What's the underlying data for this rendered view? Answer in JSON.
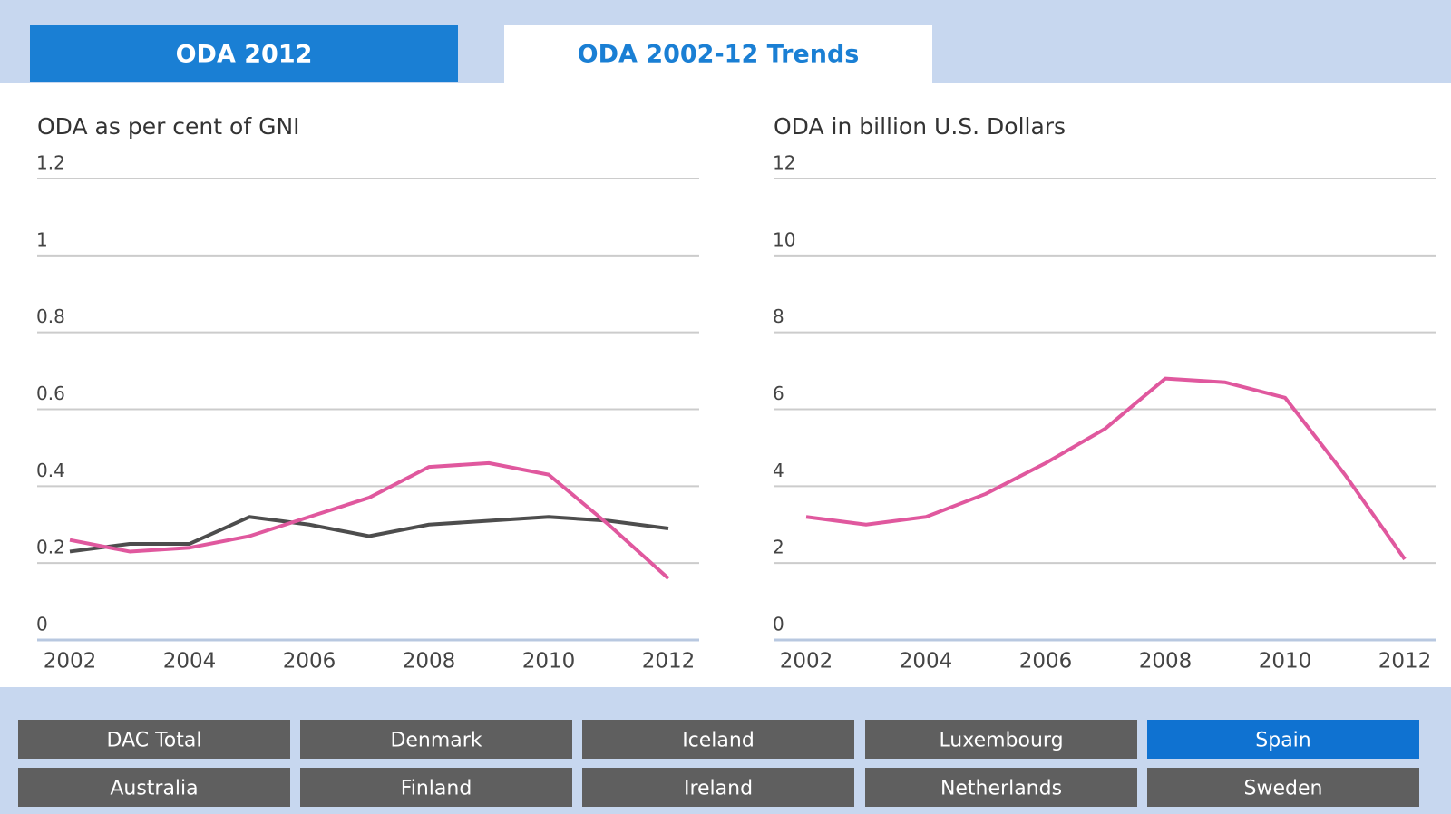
{
  "tabs": [
    "ODA 2012",
    "ODA 2002-12 Trends"
  ],
  "active_tab": 1,
  "chart_data": [
    {
      "type": "line",
      "title": "ODA as per cent of GNI",
      "x": [
        2002,
        2003,
        2004,
        2005,
        2006,
        2007,
        2008,
        2009,
        2010,
        2011,
        2012
      ],
      "series": [
        {
          "color": "#4d4d4d",
          "values": [
            0.23,
            0.25,
            0.25,
            0.32,
            0.3,
            0.27,
            0.3,
            0.31,
            0.32,
            0.31,
            0.29
          ]
        },
        {
          "color": "#e0589e",
          "values": [
            0.26,
            0.23,
            0.24,
            0.27,
            0.32,
            0.37,
            0.45,
            0.46,
            0.43,
            0.3,
            0.16
          ]
        }
      ],
      "xlim": [
        2002,
        2012
      ],
      "xticks": [
        2002,
        2004,
        2006,
        2008,
        2010,
        2012
      ],
      "ylim": [
        0,
        1.2
      ],
      "yticks": [
        0,
        0.2,
        0.4,
        0.6,
        0.8,
        1,
        1.2
      ],
      "grid": true
    },
    {
      "type": "line",
      "title": "ODA in billion U.S. Dollars",
      "x": [
        2002,
        2003,
        2004,
        2005,
        2006,
        2007,
        2008,
        2009,
        2010,
        2011,
        2012
      ],
      "series": [
        {
          "color": "#e0589e",
          "values": [
            3.2,
            3.0,
            3.2,
            3.8,
            4.6,
            5.5,
            6.8,
            6.7,
            6.3,
            4.3,
            2.1
          ]
        }
      ],
      "xlim": [
        2002,
        2012
      ],
      "xticks": [
        2002,
        2004,
        2006,
        2008,
        2010,
        2012
      ],
      "ylim": [
        0,
        12
      ],
      "yticks": [
        0,
        2,
        4,
        6,
        8,
        10,
        12
      ],
      "grid": true
    }
  ],
  "buttons": [
    "DAC Total",
    "Denmark",
    "Iceland",
    "Luxembourg",
    "Spain",
    "Australia",
    "Finland",
    "Ireland",
    "Netherlands",
    "Sweden"
  ],
  "selected_button": 4
}
